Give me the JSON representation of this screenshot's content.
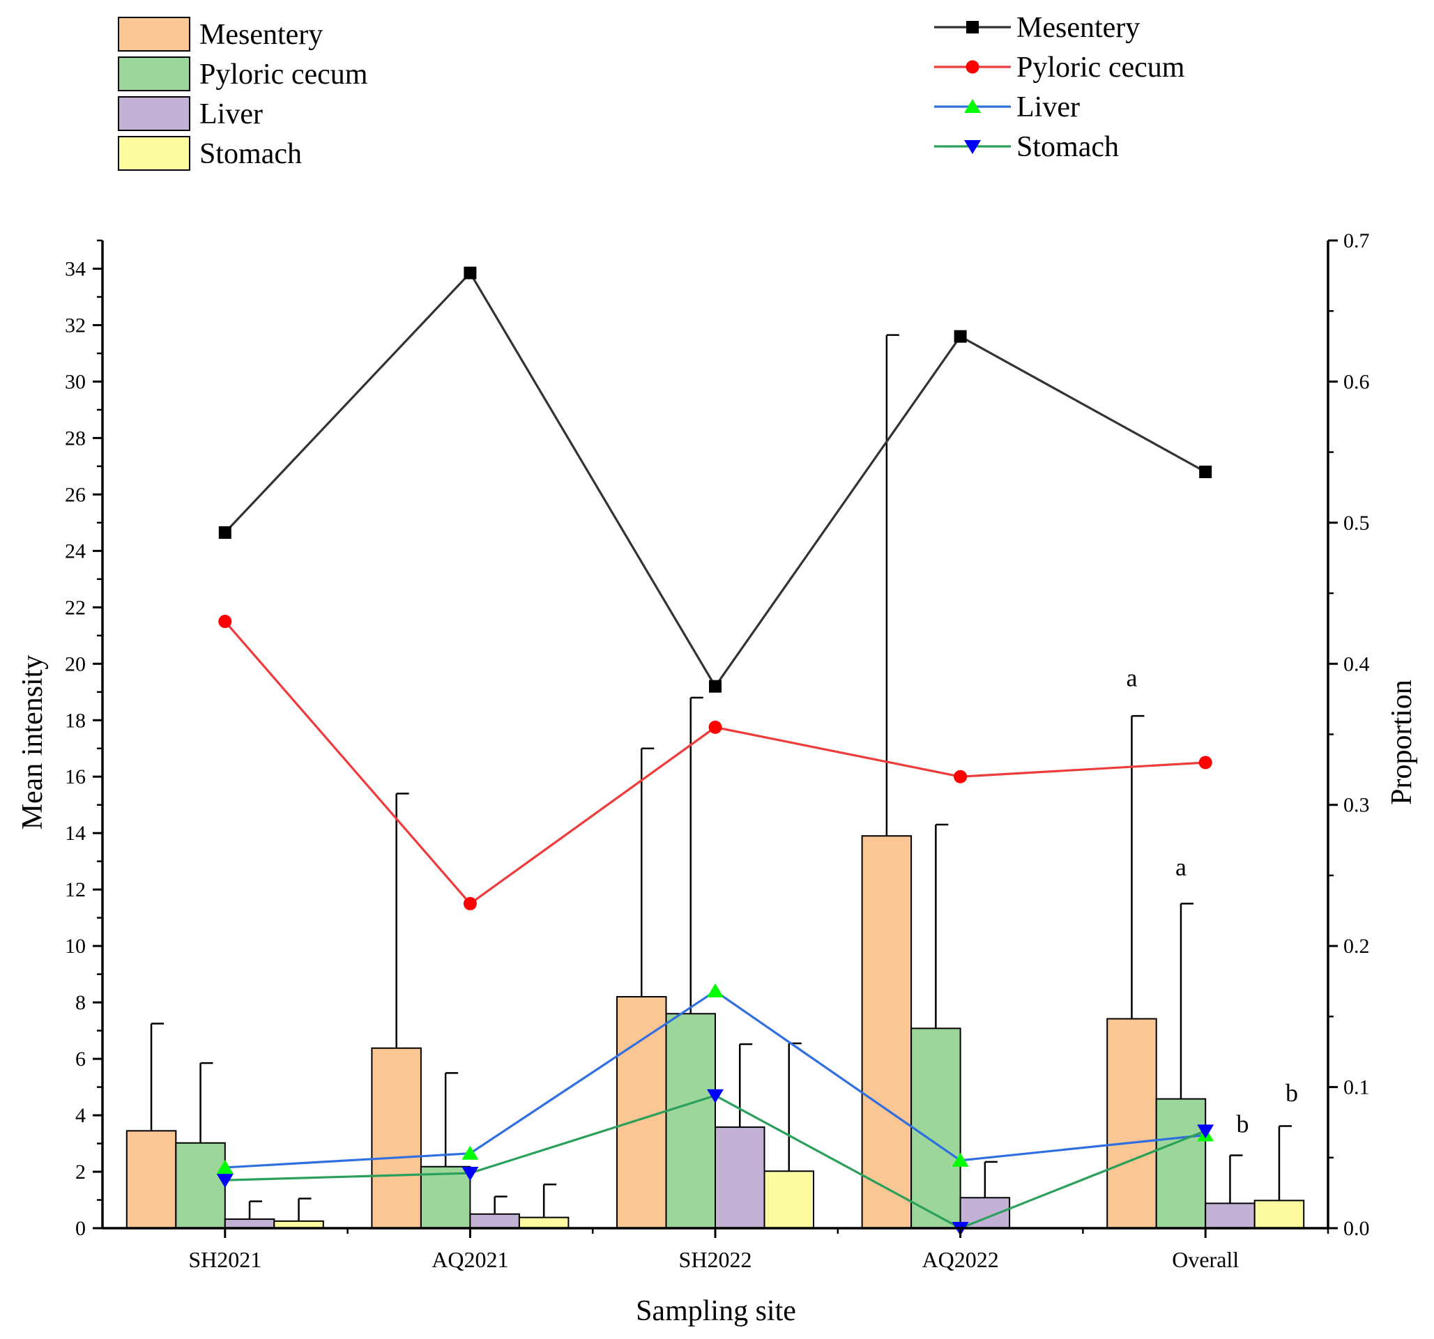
{
  "chart_data": {
    "type": "bar",
    "xlabel": "Sampling site",
    "ylabel": "Mean intensity",
    "y2label": "Proportion",
    "categories": [
      "SH2021",
      "AQ2021",
      "SH2022",
      "AQ2022",
      "Overall"
    ],
    "ylim": [
      0,
      35
    ],
    "y_ticks": [
      0,
      2,
      4,
      6,
      8,
      10,
      12,
      14,
      16,
      18,
      20,
      22,
      24,
      26,
      28,
      30,
      32,
      34
    ],
    "y2lim": [
      0,
      0.7
    ],
    "y2_ticks": [
      "0.0",
      "0.1",
      "0.2",
      "0.3",
      "0.4",
      "0.5",
      "0.6",
      "0.7"
    ],
    "grid": false,
    "legend_bars_position": "top-left",
    "legend_lines_position": "top-right",
    "bar_series": [
      {
        "name": "Mesentery",
        "color": "#f9c694",
        "values": [
          3.45,
          6.38,
          8.2,
          13.9,
          7.42
        ],
        "error_upper": [
          7.25,
          15.4,
          17.0,
          31.65,
          18.15
        ]
      },
      {
        "name": "Pyloric cecum",
        "color": "#9dd69b",
        "values": [
          3.02,
          2.18,
          7.6,
          7.08,
          4.58
        ],
        "error_upper": [
          5.85,
          5.5,
          18.8,
          14.3,
          11.5
        ]
      },
      {
        "name": "Liver",
        "color": "#c3b2d6",
        "values": [
          0.32,
          0.5,
          3.58,
          1.08,
          0.88
        ],
        "error_upper": [
          0.95,
          1.12,
          6.52,
          2.35,
          2.58
        ]
      },
      {
        "name": "Stomach",
        "color": "#fdfba1",
        "values": [
          0.25,
          0.38,
          2.02,
          0.0,
          0.98
        ],
        "error_upper": [
          1.05,
          1.55,
          6.55,
          0.0,
          3.62
        ]
      }
    ],
    "line_series": [
      {
        "name": "Mesentery",
        "color": "#333333",
        "marker": "square",
        "marker_color": "#000000",
        "values": [
          0.493,
          0.677,
          0.384,
          0.632,
          0.536
        ]
      },
      {
        "name": "Pyloric cecum",
        "color": "#ee3b3b",
        "marker": "circle",
        "marker_color": "#ff0000",
        "values": [
          0.43,
          0.23,
          0.355,
          0.32,
          0.33
        ]
      },
      {
        "name": "Liver",
        "color": "#2f6fe0",
        "marker": "triangle-up",
        "marker_color": "#00ff00",
        "values": [
          0.043,
          0.053,
          0.168,
          0.048,
          0.066
        ]
      },
      {
        "name": "Stomach",
        "color": "#2aa05a",
        "marker": "triangle-down",
        "marker_color": "#0000ff",
        "values": [
          0.034,
          0.039,
          0.094,
          0.0,
          0.069
        ]
      }
    ],
    "annotations": [
      {
        "text": "a",
        "category": "Overall",
        "series": "Mesentery",
        "y": 19.2
      },
      {
        "text": "a",
        "category": "Overall",
        "series": "Pyloric cecum",
        "y": 12.5
      },
      {
        "text": "b",
        "category": "Overall",
        "series": "Liver",
        "y": 3.4
      },
      {
        "text": "b",
        "category": "Overall",
        "series": "Stomach",
        "y": 4.5
      }
    ]
  }
}
